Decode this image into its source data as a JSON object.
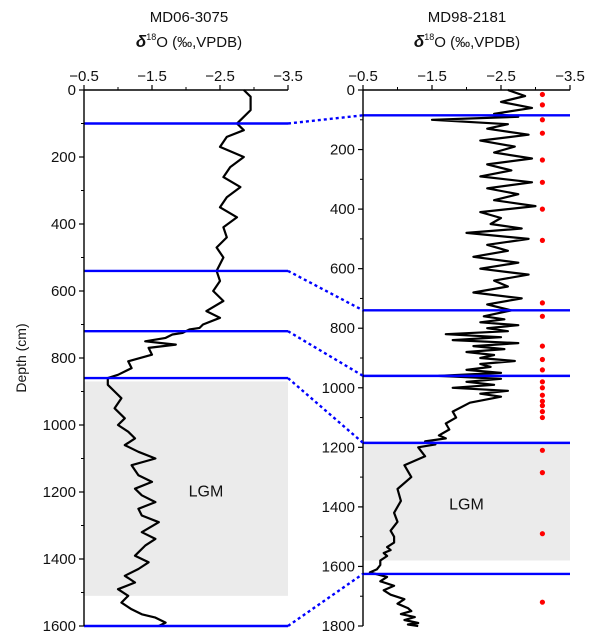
{
  "chart_data": [
    {
      "type": "line",
      "title": "MD06-3075",
      "xlabel": "δ18O (‰,VPDB)",
      "ylabel": "Depth (cm)",
      "xlim": [
        -0.5,
        -3.5
      ],
      "ylim": [
        0,
        1600
      ],
      "xticks": [
        "−0.5",
        "−1.5",
        "−2.5",
        "−3.5"
      ],
      "yticks": [
        "0",
        "200",
        "400",
        "600",
        "800",
        "1000",
        "1200",
        "1400",
        "1600"
      ],
      "lgm_band": {
        "label": "LGM",
        "depth_range": [
          870,
          1510
        ]
      },
      "tie_depths": [
        100,
        540,
        720,
        860,
        1600
      ],
      "series": [
        {
          "color": "#000000",
          "x": [
            -2.85,
            -2.95,
            -2.95,
            -2.8,
            -2.75,
            -2.85,
            -2.6,
            -2.5,
            -2.85,
            -2.65,
            -2.55,
            -2.8,
            -2.6,
            -2.5,
            -2.75,
            -2.55,
            -2.6,
            -2.45,
            -2.55,
            -2.45,
            -2.5,
            -2.4,
            -2.55,
            -2.3,
            -2.5,
            -2.25,
            -2.2,
            -2.05,
            -1.95,
            -1.8,
            -1.7,
            -1.4,
            -1.85,
            -1.45,
            -1.5,
            -1.15,
            -1.2,
            -1.0,
            -0.85,
            -0.85,
            -0.95,
            -1.05,
            -0.95,
            -1.1,
            -1.0,
            -1.15,
            -1.25,
            -1.1,
            -1.3,
            -1.55,
            -1.2,
            -1.3,
            -1.5,
            -1.25,
            -1.35,
            -1.55,
            -1.3,
            -1.35,
            -1.6,
            -1.35,
            -1.55,
            -1.4,
            -1.25,
            -1.45,
            -1.3,
            -1.1,
            -1.25,
            -1.0,
            -1.15,
            -1.05,
            -1.2,
            -1.35,
            -1.55,
            -1.7,
            -1.6
          ],
          "y": [
            0,
            20,
            60,
            90,
            100,
            120,
            140,
            170,
            200,
            230,
            260,
            290,
            320,
            350,
            380,
            410,
            440,
            470,
            500,
            540,
            570,
            600,
            630,
            660,
            680,
            700,
            710,
            715,
            725,
            730,
            740,
            750,
            760,
            770,
            790,
            810,
            830,
            850,
            860,
            880,
            900,
            920,
            950,
            980,
            1000,
            1020,
            1040,
            1060,
            1080,
            1100,
            1120,
            1150,
            1170,
            1190,
            1210,
            1230,
            1250,
            1270,
            1290,
            1320,
            1340,
            1360,
            1390,
            1410,
            1430,
            1450,
            1470,
            1490,
            1510,
            1530,
            1550,
            1565,
            1575,
            1590,
            1600
          ]
        }
      ]
    },
    {
      "type": "line",
      "title": "MD98-2181",
      "xlabel": "δ18O (‰,VPDB)",
      "ylabel": "Depth (cm)",
      "xlim": [
        -0.5,
        -3.5
      ],
      "ylim": [
        0,
        1800
      ],
      "xticks": [
        "−0.5",
        "−1.5",
        "−2.5",
        "−3.5"
      ],
      "yticks": [
        "0",
        "200",
        "400",
        "600",
        "800",
        "1000",
        "1200",
        "1400",
        "1600",
        "1800"
      ],
      "lgm_band": {
        "label": "LGM",
        "depth_range": [
          1185,
          1580
        ]
      },
      "tie_depths": [
        85,
        740,
        960,
        1185,
        1625
      ],
      "dating_points": {
        "color": "#ff0000",
        "x": -3.1,
        "depths": [
          15,
          50,
          100,
          145,
          235,
          310,
          400,
          505,
          715,
          760,
          860,
          905,
          940,
          980,
          1000,
          1025,
          1045,
          1060,
          1080,
          1100,
          1210,
          1285,
          1490,
          1720
        ]
      },
      "series": [
        {
          "color": "#000000",
          "x": [
            -2.6,
            -2.85,
            -2.5,
            -2.95,
            -2.4,
            -2.75,
            -1.5,
            -2.6,
            -2.3,
            -2.9,
            -2.2,
            -2.7,
            -2.4,
            -2.95,
            -2.3,
            -2.65,
            -2.2,
            -2.95,
            -2.3,
            -2.75,
            -2.4,
            -3.0,
            -2.2,
            -2.5,
            -2.35,
            -2.8,
            -2.0,
            -2.9,
            -2.3,
            -2.6,
            -2.1,
            -2.75,
            -2.2,
            -2.9,
            -2.4,
            -2.6,
            -2.1,
            -2.8,
            -2.3,
            -2.65,
            -2.25,
            -2.55,
            -2.2,
            -2.75,
            -2.3,
            -2.6,
            -1.7,
            -2.5,
            -1.8,
            -2.75,
            -2.1,
            -2.55,
            -2.0,
            -2.4,
            -2.2,
            -2.7,
            -2.2,
            -2.35,
            -2.0,
            -2.5,
            -1.6,
            -2.5,
            -2.0,
            -2.4,
            -1.8,
            -2.6,
            -2.2,
            -2.5,
            -2.05,
            -1.8,
            -1.85,
            -1.7,
            -1.75,
            -1.6,
            -1.7,
            -1.4,
            -1.55,
            -1.3,
            -1.4,
            -1.1,
            -1.2,
            -1.0,
            -1.05,
            -0.95,
            -1.0,
            -0.9,
            -0.95,
            -0.95,
            -0.85,
            -0.9,
            -0.8,
            -0.85,
            -0.75,
            -0.75,
            -0.7,
            -0.6,
            -0.85,
            -0.75,
            -0.95,
            -0.8,
            -0.9,
            -1.1,
            -1.0,
            -1.15,
            -1.2,
            -1.05,
            -1.25,
            -1.1,
            -1.3,
            -1.15,
            -1.3
          ],
          "y": [
            0,
            20,
            40,
            60,
            80,
            90,
            100,
            115,
            130,
            150,
            170,
            190,
            210,
            230,
            250,
            270,
            290,
            310,
            330,
            350,
            370,
            390,
            410,
            430,
            450,
            465,
            480,
            500,
            520,
            540,
            560,
            580,
            600,
            620,
            640,
            660,
            680,
            700,
            720,
            740,
            760,
            770,
            780,
            790,
            800,
            810,
            820,
            830,
            840,
            850,
            860,
            870,
            880,
            890,
            900,
            910,
            920,
            930,
            940,
            950,
            960,
            970,
            980,
            990,
            1000,
            1010,
            1020,
            1030,
            1050,
            1080,
            1100,
            1120,
            1140,
            1160,
            1170,
            1180,
            1190,
            1200,
            1230,
            1260,
            1300,
            1340,
            1380,
            1420,
            1450,
            1480,
            1500,
            1520,
            1535,
            1545,
            1555,
            1565,
            1580,
            1595,
            1610,
            1620,
            1635,
            1650,
            1665,
            1680,
            1695,
            1710,
            1725,
            1740,
            1750,
            1760,
            1770,
            1780,
            1790,
            1795,
            1800
          ]
        }
      ]
    }
  ],
  "figure": {
    "title_left": "MD06-3075",
    "title_right": "MD98-2181",
    "unit_prefix": "δ",
    "unit_sup": "18",
    "unit_suffix": "O (‰,VPDB)",
    "depth_axis_label": "Depth (cm)",
    "lgm_label": "LGM",
    "tie_line_color": "#0000ff",
    "band_color": "#ebebeb"
  }
}
